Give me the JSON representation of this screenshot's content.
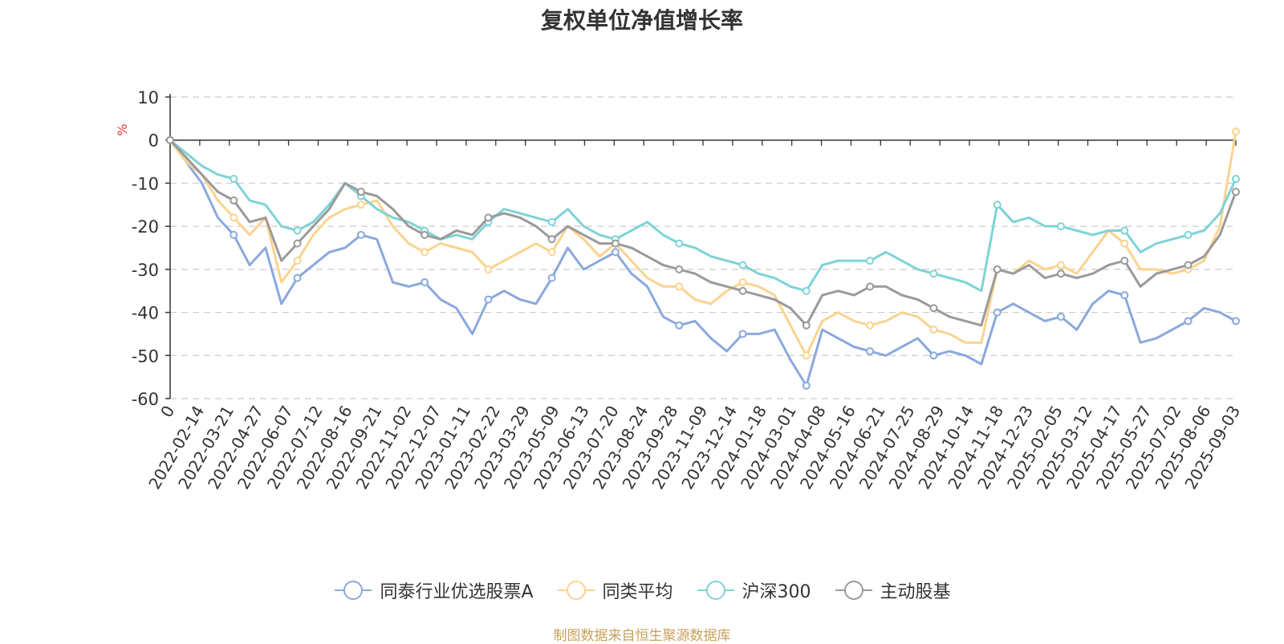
{
  "title": "复权单位净值增长率",
  "source": "制图数据来自恒生聚源数据库",
  "chart_data": {
    "type": "line",
    "title": "复权单位净值增长率",
    "ylabel": "%",
    "ylim": [
      -60,
      10
    ],
    "yticks": [
      10,
      0,
      -10,
      -20,
      -30,
      -40,
      -50,
      -60
    ],
    "grid": "horizontal dashed",
    "legend_position": "bottom",
    "x_tick_labels": [
      "0",
      "2022-02-14",
      "2022-03-21",
      "2022-04-27",
      "2022-06-07",
      "2022-07-12",
      "2022-08-16",
      "2022-09-21",
      "2022-11-02",
      "2022-12-07",
      "2023-01-11",
      "2023-02-22",
      "2023-03-29",
      "2023-05-09",
      "2023-06-13",
      "2023-07-20",
      "2023-08-24",
      "2023-09-28",
      "2023-11-09",
      "2023-12-14",
      "2024-01-18",
      "2024-03-01",
      "2024-04-08",
      "2024-05-16",
      "2024-06-21",
      "2024-07-25",
      "2024-08-29",
      "2024-10-14",
      "2024-11-18",
      "2024-12-23",
      "2025-02-05",
      "2025-03-12",
      "2025-04-17",
      "2025-05-27",
      "2025-07-02",
      "2025-08-06",
      "2025-09-03"
    ],
    "series": [
      {
        "name": "同泰行业优选股票A",
        "color": "#8aa9dc",
        "values": [
          0,
          -5,
          -10,
          -18,
          -22,
          -29,
          -25,
          -38,
          -32,
          -29,
          -26,
          -25,
          -22,
          -23,
          -33,
          -34,
          -33,
          -37,
          -39,
          -45,
          -37,
          -35,
          -37,
          -38,
          -32,
          -25,
          -30,
          -28,
          -26,
          -31,
          -34,
          -41,
          -43,
          -42,
          -46,
          -49,
          -45,
          -45,
          -44,
          -51,
          -57,
          -44,
          -46,
          -48,
          -49,
          -50,
          -48,
          -46,
          -50,
          -49,
          -50,
          -52,
          -40,
          -38,
          -40,
          -42,
          -41,
          -44,
          -38,
          -35,
          -36,
          -47,
          -46,
          -44,
          -42,
          -39,
          -40,
          -42
        ]
      },
      {
        "name": "同类平均",
        "color": "#fbd38f",
        "values": [
          0,
          -5,
          -8,
          -14,
          -18,
          -22,
          -18,
          -33,
          -28,
          -22,
          -18,
          -16,
          -15,
          -14,
          -20,
          -24,
          -26,
          -24,
          -25,
          -26,
          -30,
          -28,
          -26,
          -24,
          -26,
          -20,
          -23,
          -27,
          -24,
          -28,
          -32,
          -34,
          -34,
          -37,
          -38,
          -35,
          -33,
          -34,
          -36,
          -43,
          -50,
          -42,
          -40,
          -42,
          -43,
          -42,
          -40,
          -41,
          -44,
          -45,
          -47,
          -47,
          -30,
          -31,
          -28,
          -30,
          -29,
          -31,
          -26,
          -21,
          -24,
          -30,
          -30,
          -31,
          -30,
          -28,
          -20,
          2
        ]
      },
      {
        "name": "沪深300",
        "color": "#7fd3d6",
        "values": [
          0,
          -3,
          -6,
          -8,
          -9,
          -14,
          -15,
          -20,
          -21,
          -19,
          -15,
          -10,
          -13,
          -16,
          -18,
          -19,
          -21,
          -23,
          -22,
          -23,
          -19,
          -16,
          -17,
          -18,
          -19,
          -16,
          -20,
          -22,
          -23,
          -21,
          -19,
          -22,
          -24,
          -25,
          -27,
          -28,
          -29,
          -31,
          -32,
          -34,
          -35,
          -29,
          -28,
          -28,
          -28,
          -26,
          -28,
          -30,
          -31,
          -32,
          -33,
          -35,
          -15,
          -19,
          -18,
          -20,
          -20,
          -21,
          -22,
          -21,
          -21,
          -26,
          -24,
          -23,
          -22,
          -21,
          -17,
          -9
        ]
      },
      {
        "name": "主动股基",
        "color": "#9a9a9a",
        "values": [
          0,
          -4,
          -8,
          -12,
          -14,
          -19,
          -18,
          -28,
          -24,
          -20,
          -16,
          -10,
          -12,
          -13,
          -16,
          -20,
          -22,
          -23,
          -21,
          -22,
          -18,
          -17,
          -18,
          -20,
          -23,
          -20,
          -22,
          -24,
          -24,
          -25,
          -27,
          -29,
          -30,
          -31,
          -33,
          -34,
          -35,
          -36,
          -37,
          -39,
          -43,
          -36,
          -35,
          -36,
          -34,
          -34,
          -36,
          -37,
          -39,
          -41,
          -42,
          -43,
          -30,
          -31,
          -29,
          -32,
          -31,
          -32,
          -31,
          -29,
          -28,
          -34,
          -31,
          -30,
          -29,
          -27,
          -22,
          -12
        ]
      }
    ]
  }
}
